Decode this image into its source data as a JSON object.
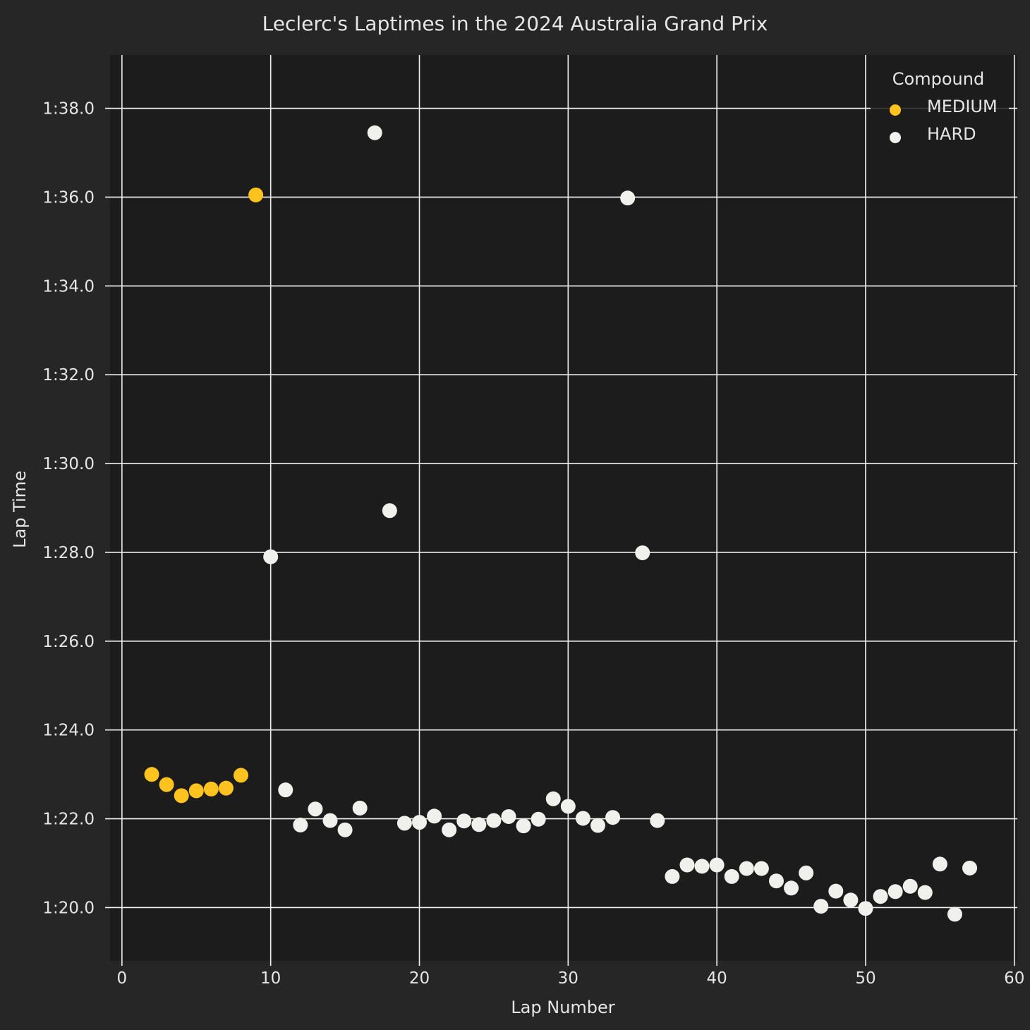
{
  "colors": {
    "figure_bg": "#262626",
    "axes_bg": "#1c1c1c",
    "grid": "#f0f0f0",
    "text": "#e6e6e6",
    "medium": "#ffc320",
    "hard": "#f0f0ec"
  },
  "chart_data": {
    "type": "scatter",
    "title": "Leclerc's Laptimes in the 2024 Australia Grand Prix",
    "xlabel": "Lap Number",
    "ylabel": "Lap Time",
    "xlim": [
      -0.8,
      60.2
    ],
    "ylim": [
      78.8,
      99.2
    ],
    "x_ticks": [
      0,
      10,
      20,
      30,
      40,
      50,
      60
    ],
    "y_ticks": [
      {
        "value": 80,
        "label": "1:20.0"
      },
      {
        "value": 82,
        "label": "1:22.0"
      },
      {
        "value": 84,
        "label": "1:24.0"
      },
      {
        "value": 86,
        "label": "1:26.0"
      },
      {
        "value": 88,
        "label": "1:28.0"
      },
      {
        "value": 90,
        "label": "1:30.0"
      },
      {
        "value": 92,
        "label": "1:32.0"
      },
      {
        "value": 94,
        "label": "1:34.0"
      },
      {
        "value": 96,
        "label": "1:36.0"
      },
      {
        "value": 98,
        "label": "1:38.0"
      }
    ],
    "grid": true,
    "legend": {
      "title": "Compound",
      "placement": "top-right"
    },
    "series": [
      {
        "name": "MEDIUM",
        "color": "#ffc320",
        "points": [
          [
            2,
            83.0
          ],
          [
            3,
            82.77
          ],
          [
            4,
            82.52
          ],
          [
            5,
            82.63
          ],
          [
            6,
            82.67
          ],
          [
            7,
            82.69
          ],
          [
            8,
            82.98
          ],
          [
            9,
            96.05
          ]
        ]
      },
      {
        "name": "HARD",
        "color": "#f0f0ec",
        "points": [
          [
            10,
            87.9
          ],
          [
            11,
            82.65
          ],
          [
            12,
            81.86
          ],
          [
            13,
            82.22
          ],
          [
            14,
            81.96
          ],
          [
            15,
            81.75
          ],
          [
            16,
            82.24
          ],
          [
            17,
            97.45
          ],
          [
            18,
            88.94
          ],
          [
            19,
            81.9
          ],
          [
            20,
            81.92
          ],
          [
            21,
            82.06
          ],
          [
            22,
            81.75
          ],
          [
            23,
            81.95
          ],
          [
            24,
            81.87
          ],
          [
            25,
            81.96
          ],
          [
            26,
            82.05
          ],
          [
            27,
            81.84
          ],
          [
            28,
            81.99
          ],
          [
            29,
            82.45
          ],
          [
            30,
            82.28
          ],
          [
            31,
            82.01
          ],
          [
            32,
            81.85
          ],
          [
            33,
            82.03
          ],
          [
            34,
            95.98
          ],
          [
            35,
            87.99
          ],
          [
            36,
            81.96
          ],
          [
            37,
            80.7
          ],
          [
            38,
            80.96
          ],
          [
            39,
            80.93
          ],
          [
            40,
            80.96
          ],
          [
            41,
            80.7
          ],
          [
            42,
            80.88
          ],
          [
            43,
            80.88
          ],
          [
            44,
            80.6
          ],
          [
            45,
            80.44
          ],
          [
            46,
            80.78
          ],
          [
            47,
            80.03
          ],
          [
            48,
            80.37
          ],
          [
            49,
            80.17
          ],
          [
            50,
            79.98
          ],
          [
            51,
            80.25
          ],
          [
            52,
            80.36
          ],
          [
            53,
            80.48
          ],
          [
            54,
            80.34
          ],
          [
            55,
            80.98
          ],
          [
            56,
            79.85
          ],
          [
            57,
            80.89
          ]
        ]
      }
    ]
  }
}
